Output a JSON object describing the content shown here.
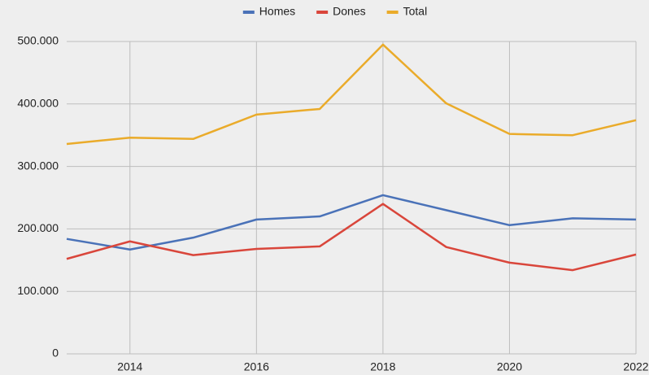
{
  "chart_data": {
    "type": "line",
    "x": [
      2013,
      2014,
      2015,
      2016,
      2017,
      2018,
      2019,
      2020,
      2021,
      2022
    ],
    "series": [
      {
        "name": "Homes",
        "color": "#4a72b8",
        "values": [
          184000,
          167000,
          186000,
          215000,
          220000,
          254000,
          230000,
          206000,
          217000,
          215000
        ]
      },
      {
        "name": "Dones",
        "color": "#d9463b",
        "values": [
          152000,
          180000,
          158000,
          168000,
          172000,
          240000,
          171000,
          146000,
          134000,
          159000
        ]
      },
      {
        "name": "Total",
        "color": "#eaab2a",
        "values": [
          336000,
          346000,
          344000,
          383000,
          392000,
          495000,
          401000,
          352000,
          350000,
          374000
        ]
      }
    ],
    "xlim": [
      2013,
      2022
    ],
    "xticks": [
      2014,
      2016,
      2018,
      2020,
      2022
    ],
    "ylim": [
      0,
      500000
    ],
    "yticks": [
      0,
      {
        "value": 100000,
        "label": "100.000"
      },
      {
        "value": 200000,
        "label": "200.000"
      },
      {
        "value": 300000,
        "label": "300.000"
      },
      {
        "value": 400000,
        "label": "400.000"
      },
      {
        "value": 500000,
        "label": "500.000"
      }
    ],
    "grid": true,
    "legend": "top"
  }
}
